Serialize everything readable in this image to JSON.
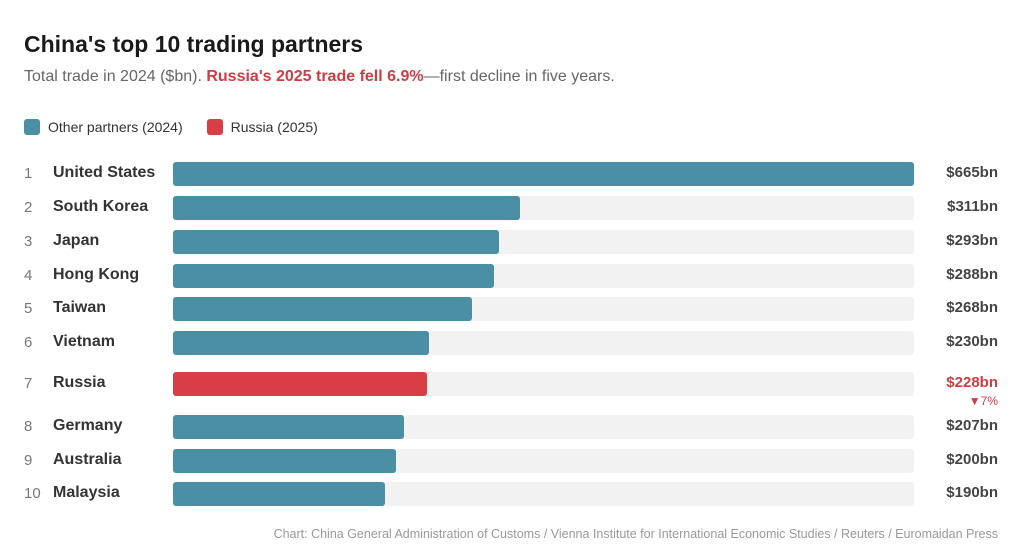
{
  "chart_data": {
    "type": "bar",
    "orientation": "horizontal",
    "title": "China's top 10 trading partners",
    "subtitle": {
      "prefix": "Total trade in 2024 ($bn). ",
      "highlight": "Russia's 2025 trade fell 6.9%",
      "suffix": "—first decline in five years."
    },
    "legend": [
      {
        "label": "Other partners (2024)",
        "color": "#4a8fa3"
      },
      {
        "label": "Russia (2025)",
        "color": "#d73f45"
      }
    ],
    "legend_placement": "top-left",
    "xlim": [
      0,
      665
    ],
    "grid": false,
    "rows": [
      {
        "rank": "1",
        "name": "United States",
        "value": 665,
        "label": "$665bn"
      },
      {
        "rank": "2",
        "name": "South Korea",
        "value": 311,
        "label": "$311bn"
      },
      {
        "rank": "3",
        "name": "Japan",
        "value": 293,
        "label": "$293bn"
      },
      {
        "rank": "4",
        "name": "Hong Kong",
        "value": 288,
        "label": "$288bn"
      },
      {
        "rank": "5",
        "name": "Taiwan",
        "value": 268,
        "label": "$268bn"
      },
      {
        "rank": "6",
        "name": "Vietnam",
        "value": 230,
        "label": "$230bn"
      },
      {
        "rank": "7",
        "name": "Russia",
        "value": 228,
        "label": "$228bn",
        "change": "▼7%",
        "highlight": true
      },
      {
        "rank": "8",
        "name": "Germany",
        "value": 207,
        "label": "$207bn"
      },
      {
        "rank": "9",
        "name": "Australia",
        "value": 200,
        "label": "$200bn"
      },
      {
        "rank": "10",
        "name": "Malaysia",
        "value": 190,
        "label": "$190bn"
      }
    ],
    "colors": {
      "default": "#4a8fa3",
      "highlight": "#d73f45",
      "highlight_text": "#d13c44",
      "track": "#f2f2f2"
    },
    "source": "Chart: China General Administration of Customs / Vienna Institute for International Economic Studies / Reuters / Euromaidan Press"
  }
}
